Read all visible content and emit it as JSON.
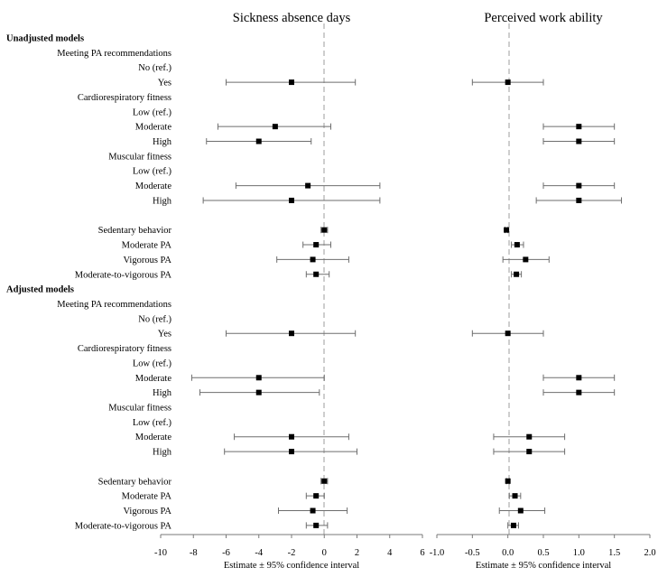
{
  "chart_data": {
    "type": "forest",
    "row_labels": [
      {
        "text": "Unadjusted models",
        "kind": "section"
      },
      {
        "text": "Meeting PA recommendations",
        "kind": "label"
      },
      {
        "text": "No (ref.)",
        "kind": "label"
      },
      {
        "text": "Yes",
        "kind": "label"
      },
      {
        "text": "Cardiorespiratory fitness",
        "kind": "label"
      },
      {
        "text": "Low (ref.)",
        "kind": "label"
      },
      {
        "text": "Moderate",
        "kind": "label"
      },
      {
        "text": "High",
        "kind": "label"
      },
      {
        "text": "Muscular fitness",
        "kind": "label"
      },
      {
        "text": "Low (ref.)",
        "kind": "label"
      },
      {
        "text": "Moderate",
        "kind": "label"
      },
      {
        "text": "High",
        "kind": "label"
      },
      {
        "text": "",
        "kind": "blank"
      },
      {
        "text": "Sedentary behavior",
        "kind": "label"
      },
      {
        "text": "Moderate PA",
        "kind": "label"
      },
      {
        "text": "Vigorous PA",
        "kind": "label"
      },
      {
        "text": "Moderate-to-vigorous PA",
        "kind": "label"
      },
      {
        "text": "Adjusted models",
        "kind": "section"
      },
      {
        "text": "Meeting PA recommendations",
        "kind": "label"
      },
      {
        "text": "No (ref.)",
        "kind": "label"
      },
      {
        "text": "Yes",
        "kind": "label"
      },
      {
        "text": "Cardiorespiratory fitness",
        "kind": "label"
      },
      {
        "text": "Low (ref.)",
        "kind": "label"
      },
      {
        "text": "Moderate",
        "kind": "label"
      },
      {
        "text": "High",
        "kind": "label"
      },
      {
        "text": "Muscular fitness",
        "kind": "label"
      },
      {
        "text": "Low (ref.)",
        "kind": "label"
      },
      {
        "text": "Moderate",
        "kind": "label"
      },
      {
        "text": "High",
        "kind": "label"
      },
      {
        "text": "",
        "kind": "blank"
      },
      {
        "text": "Sedentary behavior",
        "kind": "label"
      },
      {
        "text": "Moderate PA",
        "kind": "label"
      },
      {
        "text": "Vigorous PA",
        "kind": "label"
      },
      {
        "text": "Moderate-to-vigorous PA",
        "kind": "label"
      }
    ],
    "panels": [
      {
        "title": "Sickness absence days",
        "xlabel": "Estimate ± 95% confidence interval",
        "xlim": [
          -10,
          6
        ],
        "ticks": [
          -10,
          -8,
          -6,
          -4,
          -2,
          0,
          2,
          4,
          6
        ],
        "reference_line": 0,
        "estimates": [
          {
            "row": 3,
            "est": -2,
            "lo": -6,
            "hi": 1.9
          },
          {
            "row": 6,
            "est": -3,
            "lo": -6.5,
            "hi": 0.4
          },
          {
            "row": 7,
            "est": -4,
            "lo": -7.2,
            "hi": -0.8
          },
          {
            "row": 10,
            "est": -1,
            "lo": -5.4,
            "hi": 3.4
          },
          {
            "row": 11,
            "est": -2,
            "lo": -7.4,
            "hi": 3.4
          },
          {
            "row": 13,
            "est": 0,
            "lo": -0.2,
            "hi": 0.2
          },
          {
            "row": 14,
            "est": -0.5,
            "lo": -1.3,
            "hi": 0.4
          },
          {
            "row": 15,
            "est": -0.7,
            "lo": -2.9,
            "hi": 1.5
          },
          {
            "row": 16,
            "est": -0.5,
            "lo": -1.1,
            "hi": 0.3
          },
          {
            "row": 20,
            "est": -2,
            "lo": -6,
            "hi": 1.9
          },
          {
            "row": 23,
            "est": -4,
            "lo": -8.1,
            "hi": 0
          },
          {
            "row": 24,
            "est": -4,
            "lo": -7.6,
            "hi": -0.3
          },
          {
            "row": 27,
            "est": -2,
            "lo": -5.5,
            "hi": 1.5
          },
          {
            "row": 28,
            "est": -2,
            "lo": -6.1,
            "hi": 2
          },
          {
            "row": 30,
            "est": 0,
            "lo": -0.2,
            "hi": 0.2
          },
          {
            "row": 31,
            "est": -0.5,
            "lo": -1.1,
            "hi": 0
          },
          {
            "row": 32,
            "est": -0.7,
            "lo": -2.8,
            "hi": 1.4
          },
          {
            "row": 33,
            "est": -0.5,
            "lo": -1.1,
            "hi": 0.2
          }
        ]
      },
      {
        "title": "Perceived work ability",
        "xlabel": "Estimate ± 95% confidence interval",
        "xlim": [
          -1.0,
          2.0
        ],
        "ticks": [
          -1.0,
          -0.5,
          0.0,
          0.5,
          1.0,
          1.5,
          2.0
        ],
        "reference_line": 0,
        "estimates": [
          {
            "row": 3,
            "est": 0,
            "lo": -0.5,
            "hi": 0.5
          },
          {
            "row": 6,
            "est": 1,
            "lo": 0.5,
            "hi": 1.5
          },
          {
            "row": 7,
            "est": 1,
            "lo": 0.5,
            "hi": 1.5
          },
          {
            "row": 10,
            "est": 1,
            "lo": 0.5,
            "hi": 1.5
          },
          {
            "row": 11,
            "est": 1,
            "lo": 0.4,
            "hi": 1.6
          },
          {
            "row": 13,
            "est": -0.02,
            "lo": -0.04,
            "hi": 0.0
          },
          {
            "row": 14,
            "est": 0.13,
            "lo": 0.05,
            "hi": 0.22
          },
          {
            "row": 15,
            "est": 0.25,
            "lo": -0.07,
            "hi": 0.58
          },
          {
            "row": 16,
            "est": 0.12,
            "lo": 0.05,
            "hi": 0.19
          },
          {
            "row": 20,
            "est": 0,
            "lo": -0.5,
            "hi": 0.5
          },
          {
            "row": 23,
            "est": 1,
            "lo": 0.5,
            "hi": 1.5
          },
          {
            "row": 24,
            "est": 1,
            "lo": 0.5,
            "hi": 1.5
          },
          {
            "row": 27,
            "est": 0.3,
            "lo": -0.2,
            "hi": 0.8
          },
          {
            "row": 28,
            "est": 0.3,
            "lo": -0.2,
            "hi": 0.8
          },
          {
            "row": 30,
            "est": 0,
            "lo": -0.02,
            "hi": 0.02
          },
          {
            "row": 31,
            "est": 0.1,
            "lo": 0.02,
            "hi": 0.18
          },
          {
            "row": 32,
            "est": 0.18,
            "lo": -0.12,
            "hi": 0.52
          },
          {
            "row": 33,
            "est": 0.08,
            "lo": 0.0,
            "hi": 0.15
          }
        ]
      }
    ]
  },
  "colors": {
    "marker": "#000000",
    "whisker": "#6e6e6e",
    "axis": "#7a7a7a",
    "reference_line": "#bdbdbd"
  }
}
